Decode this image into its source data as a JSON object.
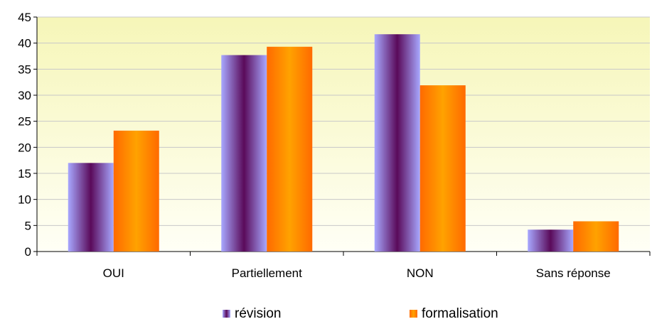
{
  "chart_data": {
    "type": "bar",
    "categories": [
      "OUI",
      "Partiellement",
      "NON",
      "Sans réponse"
    ],
    "series": [
      {
        "name": "révision",
        "values": [
          17,
          37.7,
          41.7,
          4.2
        ],
        "color": "#9999ff"
      },
      {
        "name": "formalisation",
        "values": [
          23.2,
          39.3,
          31.9,
          5.8
        ],
        "color": "#ff8000"
      }
    ],
    "ylim": [
      0,
      45
    ],
    "yticks": [
      0,
      5,
      10,
      15,
      20,
      25,
      30,
      35,
      40,
      45
    ],
    "grid": true,
    "legend_position": "bottom",
    "plot_background": "#fffff0 to #f5f5b8 gradient",
    "title": "",
    "xlabel": "",
    "ylabel": ""
  }
}
